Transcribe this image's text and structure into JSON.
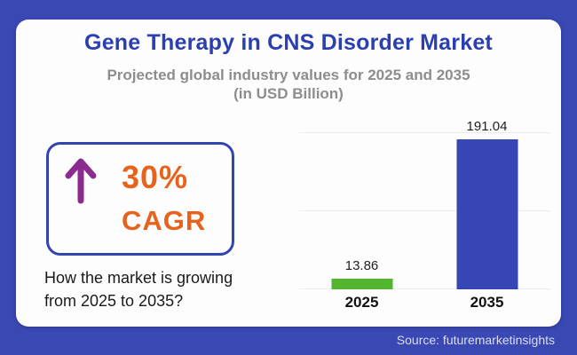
{
  "header": {
    "title": "Gene Therapy in CNS Disorder Market",
    "subtitle_line1": "Projected global industry values for 2025 and 2035",
    "subtitle_line2": "(in USD Billion)"
  },
  "cagr": {
    "value": "30%",
    "label": "CAGR",
    "caption": "How the market is growing from 2025 to 2035?"
  },
  "footer": {
    "source": "Source: futuremarketinsights"
  },
  "colors": {
    "background_blue": "#3A48B4",
    "title_blue": "#2B3FAE",
    "subtitle_gray": "#8D8D8D",
    "accent_orange": "#E6631D",
    "arrow_purple": "#8C2B8F",
    "bar_2025_green": "#52B52E",
    "bar_2035_blue": "#3646B4",
    "box_border_blue": "#3345AE",
    "gridline_gray": "#ECECEC",
    "source_text": "#D9DEF5"
  },
  "chart_data": {
    "type": "bar",
    "categories": [
      "2025",
      "2035"
    ],
    "values": [
      13.86,
      191.04
    ],
    "data_labels": [
      "13.86",
      "191.04"
    ],
    "bar_colors": [
      "#52B52E",
      "#3646B4"
    ],
    "title": "Gene Therapy in CNS Disorder Market",
    "subtitle": "Projected global industry values for 2025 and 2035 (in USD Billion)",
    "xlabel": "",
    "ylabel": "USD Billion",
    "ylim": [
      0,
      200
    ],
    "gridlines": [
      0,
      100,
      200
    ],
    "grid": true,
    "legend": false
  }
}
